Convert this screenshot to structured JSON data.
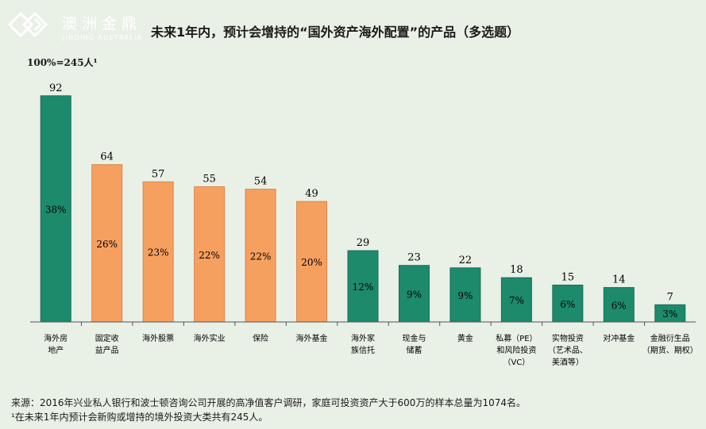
{
  "brand": {
    "name_cn": "澳洲金鼎",
    "name_en": "JINDING AUSTRALIA"
  },
  "title": "未来1年内，预计会增持的“国外资产海外配置”的产品（多选题）",
  "base_note": "100%=245人¹",
  "source": "来源：2016年兴业私人银行和波士顿咨询公司开展的高净值客户调研，家庭可投资资产大于600万的样本总量为1074名。",
  "footnote": "¹在未来1年内预计会新购或增持的境外投资大类共有245人。",
  "colors": {
    "green": "#1d8a6c",
    "orange": "#f6a060",
    "background": "#e9f0e6"
  },
  "chart_data": {
    "type": "bar",
    "title": "未来1年内，预计会增持的“国外资产海外配置”的产品（多选题）",
    "xlabel": "",
    "ylabel": "",
    "ylim": [
      0,
      100
    ],
    "grid": false,
    "categories": [
      [
        "海外房",
        "地产"
      ],
      [
        "固定收",
        "益产品"
      ],
      [
        "海外股票"
      ],
      [
        "海外实业"
      ],
      [
        "保险"
      ],
      [
        "海外基金"
      ],
      [
        "海外家",
        "族信托"
      ],
      [
        "现金与",
        "储蓄"
      ],
      [
        "黄金"
      ],
      [
        "私募（PE）",
        "和风险投资",
        "（VC）"
      ],
      [
        "实物投资",
        "（艺术品、",
        "美酒等）"
      ],
      [
        "对冲基金"
      ],
      [
        "金融衍生品",
        "（期货、期权）"
      ]
    ],
    "values": [
      92,
      64,
      57,
      55,
      54,
      49,
      29,
      23,
      22,
      18,
      15,
      14,
      7
    ],
    "percent_labels": [
      "38%",
      "26%",
      "23%",
      "22%",
      "22%",
      "20%",
      "12%",
      "9%",
      "9%",
      "7%",
      "6%",
      "6%",
      "3%"
    ],
    "bar_colors": [
      "green",
      "orange",
      "orange",
      "orange",
      "orange",
      "orange",
      "green",
      "green",
      "green",
      "green",
      "green",
      "green",
      "green"
    ]
  }
}
